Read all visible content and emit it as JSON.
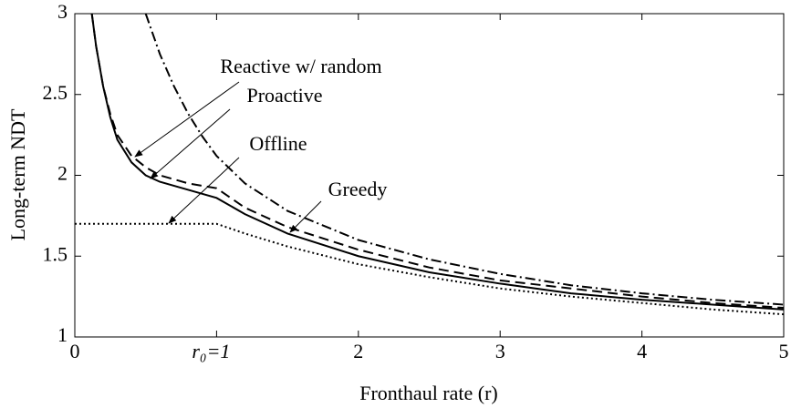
{
  "chart_data": {
    "type": "line",
    "xlabel": "Fronthaul rate (r)",
    "ylabel": "Long-term NDT",
    "xlim": [
      0,
      5
    ],
    "ylim": [
      1,
      3
    ],
    "xticks": [
      0,
      {
        "value": 1,
        "label": "r₀=1"
      },
      2,
      3,
      4,
      5
    ],
    "yticks": [
      1,
      1.5,
      2,
      2.5,
      3
    ],
    "grid": false,
    "series": [
      {
        "name": "Reactive w/ random",
        "color": "#000000",
        "dash": "dashed",
        "x": [
          0.12,
          0.15,
          0.2,
          0.25,
          0.3,
          0.4,
          0.5,
          0.6,
          0.8,
          1,
          1.2,
          1.5,
          2,
          2.5,
          3,
          3.5,
          4,
          4.5,
          5
        ],
        "values": [
          3,
          2.8,
          2.55,
          2.38,
          2.25,
          2.12,
          2.05,
          2.0,
          1.95,
          1.92,
          1.8,
          1.68,
          1.54,
          1.43,
          1.35,
          1.3,
          1.25,
          1.21,
          1.18
        ]
      },
      {
        "name": "Proactive",
        "color": "#000000",
        "dash": "solid",
        "x": [
          0.12,
          0.15,
          0.2,
          0.25,
          0.3,
          0.4,
          0.5,
          0.6,
          0.8,
          1,
          1.2,
          1.5,
          2,
          2.5,
          3,
          3.5,
          4,
          4.5,
          5
        ],
        "values": [
          3,
          2.8,
          2.55,
          2.36,
          2.22,
          2.08,
          2.0,
          1.96,
          1.91,
          1.86,
          1.76,
          1.64,
          1.5,
          1.4,
          1.33,
          1.27,
          1.23,
          1.2,
          1.17
        ]
      },
      {
        "name": "Offline",
        "color": "#000000",
        "dash": "dotted",
        "x": [
          0,
          0.5,
          1,
          1.2,
          1.5,
          2,
          2.5,
          3,
          3.5,
          4,
          4.5,
          5
        ],
        "values": [
          1.7,
          1.7,
          1.7,
          1.64,
          1.56,
          1.45,
          1.37,
          1.3,
          1.25,
          1.21,
          1.17,
          1.14
        ]
      },
      {
        "name": "Greedy",
        "color": "#000000",
        "dash": "dashdot",
        "x": [
          0.5,
          0.6,
          0.7,
          0.8,
          0.9,
          1,
          1.2,
          1.5,
          2,
          2.5,
          3,
          3.5,
          4,
          4.5,
          5
        ],
        "values": [
          3,
          2.75,
          2.55,
          2.38,
          2.24,
          2.12,
          1.95,
          1.78,
          1.6,
          1.48,
          1.39,
          1.32,
          1.27,
          1.23,
          1.2
        ]
      }
    ]
  }
}
